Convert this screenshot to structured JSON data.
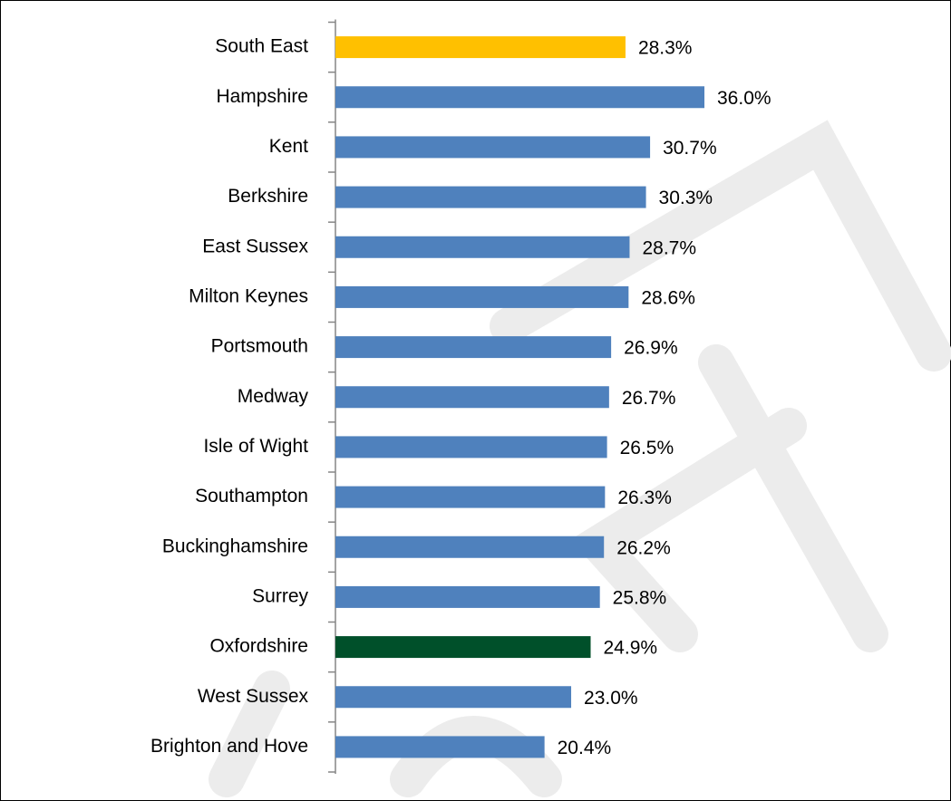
{
  "chart_data": {
    "type": "bar",
    "orientation": "horizontal",
    "categories": [
      "South East",
      "Hampshire",
      "Kent",
      "Berkshire",
      "East Sussex",
      "Milton Keynes",
      "Portsmouth",
      "Medway",
      "Isle of Wight",
      "Southampton",
      "Buckinghamshire",
      "Surrey",
      "Oxfordshire",
      "West Sussex",
      "Brighton and Hove"
    ],
    "values": [
      28.3,
      36.0,
      30.7,
      30.3,
      28.7,
      28.6,
      26.9,
      26.7,
      26.5,
      26.3,
      26.2,
      25.8,
      24.9,
      23.0,
      20.4
    ],
    "value_labels": [
      "28.3%",
      "36.0%",
      "30.7%",
      "30.3%",
      "28.7%",
      "28.6%",
      "26.9%",
      "26.7%",
      "26.5%",
      "26.3%",
      "26.2%",
      "25.8%",
      "24.9%",
      "23.0%",
      "20.4%"
    ],
    "colors": [
      "#ffc000",
      "#4f81bd",
      "#4f81bd",
      "#4f81bd",
      "#4f81bd",
      "#4f81bd",
      "#4f81bd",
      "#4f81bd",
      "#4f81bd",
      "#4f81bd",
      "#4f81bd",
      "#4f81bd",
      "#00502a",
      "#4f81bd",
      "#4f81bd"
    ]
  }
}
